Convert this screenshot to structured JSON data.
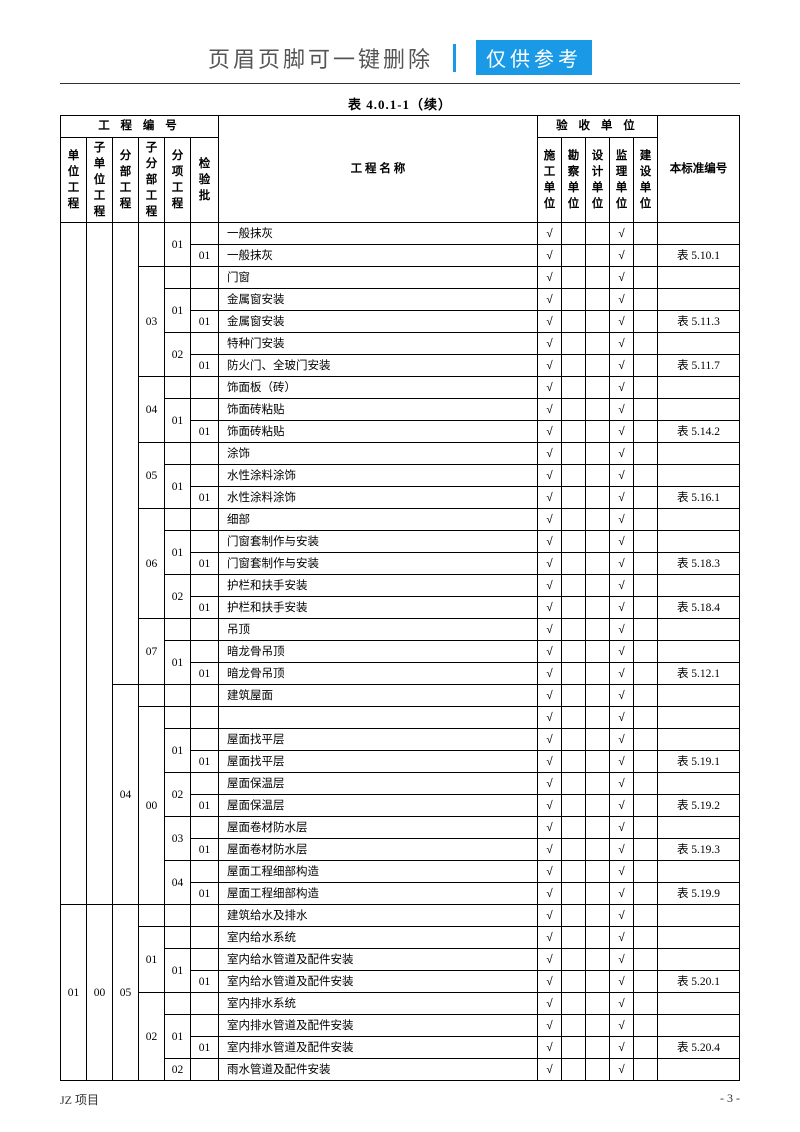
{
  "header": {
    "text": "页眉页脚可一键删除",
    "badge": "仅供参考"
  },
  "title": "表 4.0.1-1（续）",
  "group_headers": {
    "left": "工 程 编 号",
    "right": "验 收 单 位"
  },
  "cols": {
    "c1": "单位工程",
    "c2": "子单位工程",
    "c3": "分部工程",
    "c4": "子分部工程",
    "c5": "分项工程",
    "c6": "检验批",
    "name": "工 程 名 称",
    "u1": "施工单位",
    "u2": "勘察单位",
    "u3": "设计单位",
    "u4": "监理单位",
    "u5": "建设单位",
    "std": "本标准编号"
  },
  "check": "√",
  "rows": [
    {
      "c1": "",
      "c2": "",
      "c3": "",
      "c4": "",
      "c5": "01",
      "c6": "",
      "name": "一般抹灰",
      "u": [
        1,
        0,
        0,
        1,
        0
      ],
      "std": ""
    },
    {
      "c1": "",
      "c2": "",
      "c3": "",
      "c4": "",
      "c5": "",
      "c6": "01",
      "name": "一般抹灰",
      "u": [
        1,
        0,
        0,
        1,
        0
      ],
      "std": "表 5.10.1"
    },
    {
      "c1": "",
      "c2": "",
      "c3": "",
      "c4": "03",
      "c5": "",
      "c6": "",
      "name": "门窗",
      "u": [
        1,
        0,
        0,
        1,
        0
      ],
      "std": ""
    },
    {
      "c1": "",
      "c2": "",
      "c3": "",
      "c4": "",
      "c5": "01",
      "c6": "",
      "name": "金属窗安装",
      "u": [
        1,
        0,
        0,
        1,
        0
      ],
      "std": ""
    },
    {
      "c1": "",
      "c2": "",
      "c3": "",
      "c4": "",
      "c5": "",
      "c6": "01",
      "name": "金属窗安装",
      "u": [
        1,
        0,
        0,
        1,
        0
      ],
      "std": "表 5.11.3"
    },
    {
      "c1": "",
      "c2": "",
      "c3": "",
      "c4": "",
      "c5": "02",
      "c6": "",
      "name": "特种门安装",
      "u": [
        1,
        0,
        0,
        1,
        0
      ],
      "std": ""
    },
    {
      "c1": "",
      "c2": "",
      "c3": "",
      "c4": "",
      "c5": "",
      "c6": "01",
      "name": "防火门、全玻门安装",
      "u": [
        1,
        0,
        0,
        1,
        0
      ],
      "std": "表 5.11.7"
    },
    {
      "c1": "",
      "c2": "",
      "c3": "",
      "c4": "04",
      "c5": "",
      "c6": "",
      "name": "饰面板（砖）",
      "u": [
        1,
        0,
        0,
        1,
        0
      ],
      "std": ""
    },
    {
      "c1": "",
      "c2": "",
      "c3": "",
      "c4": "",
      "c5": "01",
      "c6": "",
      "name": "饰面砖粘贴",
      "u": [
        1,
        0,
        0,
        1,
        0
      ],
      "std": ""
    },
    {
      "c1": "",
      "c2": "",
      "c3": "",
      "c4": "",
      "c5": "",
      "c6": "01",
      "name": "饰面砖粘贴",
      "u": [
        1,
        0,
        0,
        1,
        0
      ],
      "std": "表 5.14.2"
    },
    {
      "c1": "",
      "c2": "",
      "c3": "",
      "c4": "05",
      "c5": "",
      "c6": "",
      "name": "涂饰",
      "u": [
        1,
        0,
        0,
        1,
        0
      ],
      "std": ""
    },
    {
      "c1": "",
      "c2": "",
      "c3": "",
      "c4": "",
      "c5": "01",
      "c6": "",
      "name": "水性涂料涂饰",
      "u": [
        1,
        0,
        0,
        1,
        0
      ],
      "std": ""
    },
    {
      "c1": "",
      "c2": "",
      "c3": "",
      "c4": "",
      "c5": "",
      "c6": "01",
      "name": "水性涂料涂饰",
      "u": [
        1,
        0,
        0,
        1,
        0
      ],
      "std": "表 5.16.1"
    },
    {
      "c1": "",
      "c2": "",
      "c3": "",
      "c4": "06",
      "c5": "",
      "c6": "",
      "name": "细部",
      "u": [
        1,
        0,
        0,
        1,
        0
      ],
      "std": ""
    },
    {
      "c1": "",
      "c2": "",
      "c3": "",
      "c4": "",
      "c5": "01",
      "c6": "",
      "name": "门窗套制作与安装",
      "u": [
        1,
        0,
        0,
        1,
        0
      ],
      "std": ""
    },
    {
      "c1": "",
      "c2": "",
      "c3": "",
      "c4": "",
      "c5": "",
      "c6": "01",
      "name": "门窗套制作与安装",
      "u": [
        1,
        0,
        0,
        1,
        0
      ],
      "std": "表 5.18.3"
    },
    {
      "c1": "",
      "c2": "",
      "c3": "",
      "c4": "",
      "c5": "02",
      "c6": "",
      "name": "护栏和扶手安装",
      "u": [
        1,
        0,
        0,
        1,
        0
      ],
      "std": ""
    },
    {
      "c1": "",
      "c2": "",
      "c3": "",
      "c4": "",
      "c5": "",
      "c6": "01",
      "name": "护栏和扶手安装",
      "u": [
        1,
        0,
        0,
        1,
        0
      ],
      "std": "表 5.18.4"
    },
    {
      "c1": "",
      "c2": "",
      "c3": "",
      "c4": "07",
      "c5": "",
      "c6": "",
      "name": "吊顶",
      "u": [
        1,
        0,
        0,
        1,
        0
      ],
      "std": ""
    },
    {
      "c1": "",
      "c2": "",
      "c3": "",
      "c4": "",
      "c5": "01",
      "c6": "",
      "name": "暗龙骨吊顶",
      "u": [
        1,
        0,
        0,
        1,
        0
      ],
      "std": ""
    },
    {
      "c1": "",
      "c2": "",
      "c3": "",
      "c4": "",
      "c5": "",
      "c6": "01",
      "name": "暗龙骨吊顶",
      "u": [
        1,
        0,
        0,
        1,
        0
      ],
      "std": "表 5.12.1"
    },
    {
      "c1": "",
      "c2": "",
      "c3": "04",
      "c4": "",
      "c5": "",
      "c6": "",
      "name": "建筑屋面",
      "u": [
        1,
        0,
        0,
        1,
        0
      ],
      "std": ""
    },
    {
      "c1": "",
      "c2": "",
      "c3": "",
      "c4": "00",
      "c5": "",
      "c6": "",
      "name": "",
      "u": [
        1,
        0,
        0,
        1,
        0
      ],
      "std": ""
    },
    {
      "c1": "",
      "c2": "",
      "c3": "",
      "c4": "",
      "c5": "01",
      "c6": "",
      "name": "屋面找平层",
      "u": [
        1,
        0,
        0,
        1,
        0
      ],
      "std": ""
    },
    {
      "c1": "",
      "c2": "",
      "c3": "",
      "c4": "",
      "c5": "",
      "c6": "01",
      "name": "屋面找平层",
      "u": [
        1,
        0,
        0,
        1,
        0
      ],
      "std": "表 5.19.1"
    },
    {
      "c1": "",
      "c2": "",
      "c3": "",
      "c4": "",
      "c5": "02",
      "c6": "",
      "name": "屋面保温层",
      "u": [
        1,
        0,
        0,
        1,
        0
      ],
      "std": ""
    },
    {
      "c1": "",
      "c2": "",
      "c3": "",
      "c4": "",
      "c5": "",
      "c6": "01",
      "name": "屋面保温层",
      "u": [
        1,
        0,
        0,
        1,
        0
      ],
      "std": "表 5.19.2"
    },
    {
      "c1": "",
      "c2": "",
      "c3": "",
      "c4": "",
      "c5": "03",
      "c6": "",
      "name": "屋面卷材防水层",
      "u": [
        1,
        0,
        0,
        1,
        0
      ],
      "std": ""
    },
    {
      "c1": "",
      "c2": "",
      "c3": "",
      "c4": "",
      "c5": "",
      "c6": "01",
      "name": "屋面卷材防水层",
      "u": [
        1,
        0,
        0,
        1,
        0
      ],
      "std": "表 5.19.3"
    },
    {
      "c1": "",
      "c2": "",
      "c3": "",
      "c4": "",
      "c5": "04",
      "c6": "",
      "name": "屋面工程细部构造",
      "u": [
        1,
        0,
        0,
        1,
        0
      ],
      "std": ""
    },
    {
      "c1": "",
      "c2": "",
      "c3": "",
      "c4": "",
      "c5": "",
      "c6": "01",
      "name": "屋面工程细部构造",
      "u": [
        1,
        0,
        0,
        1,
        0
      ],
      "std": "表 5.19.9"
    },
    {
      "c1": "01",
      "c2": "00",
      "c3": "05",
      "c4": "",
      "c5": "",
      "c6": "",
      "name": "建筑给水及排水",
      "u": [
        1,
        0,
        0,
        1,
        0
      ],
      "std": ""
    },
    {
      "c1": "",
      "c2": "",
      "c3": "",
      "c4": "01",
      "c5": "",
      "c6": "",
      "name": "室内给水系统",
      "u": [
        1,
        0,
        0,
        1,
        0
      ],
      "std": ""
    },
    {
      "c1": "",
      "c2": "",
      "c3": "",
      "c4": "",
      "c5": "01",
      "c6": "",
      "name": "室内给水管道及配件安装",
      "u": [
        1,
        0,
        0,
        1,
        0
      ],
      "std": ""
    },
    {
      "c1": "",
      "c2": "",
      "c3": "",
      "c4": "",
      "c5": "",
      "c6": "01",
      "name": "室内给水管道及配件安装",
      "u": [
        1,
        0,
        0,
        1,
        0
      ],
      "std": "表 5.20.1"
    },
    {
      "c1": "",
      "c2": "",
      "c3": "",
      "c4": "02",
      "c5": "",
      "c6": "",
      "name": "室内排水系统",
      "u": [
        1,
        0,
        0,
        1,
        0
      ],
      "std": ""
    },
    {
      "c1": "",
      "c2": "",
      "c3": "",
      "c4": "",
      "c5": "01",
      "c6": "",
      "name": "室内排水管道及配件安装",
      "u": [
        1,
        0,
        0,
        1,
        0
      ],
      "std": ""
    },
    {
      "c1": "",
      "c2": "",
      "c3": "",
      "c4": "",
      "c5": "",
      "c6": "01",
      "name": "室内排水管道及配件安装",
      "u": [
        1,
        0,
        0,
        1,
        0
      ],
      "std": "表 5.20.4"
    },
    {
      "c1": "",
      "c2": "",
      "c3": "",
      "c4": "",
      "c5": "02",
      "c6": "",
      "name": "雨水管道及配件安装",
      "u": [
        1,
        0,
        0,
        1,
        0
      ],
      "std": ""
    }
  ],
  "footer": {
    "left": "JZ 项目",
    "right": "- 3 -"
  }
}
